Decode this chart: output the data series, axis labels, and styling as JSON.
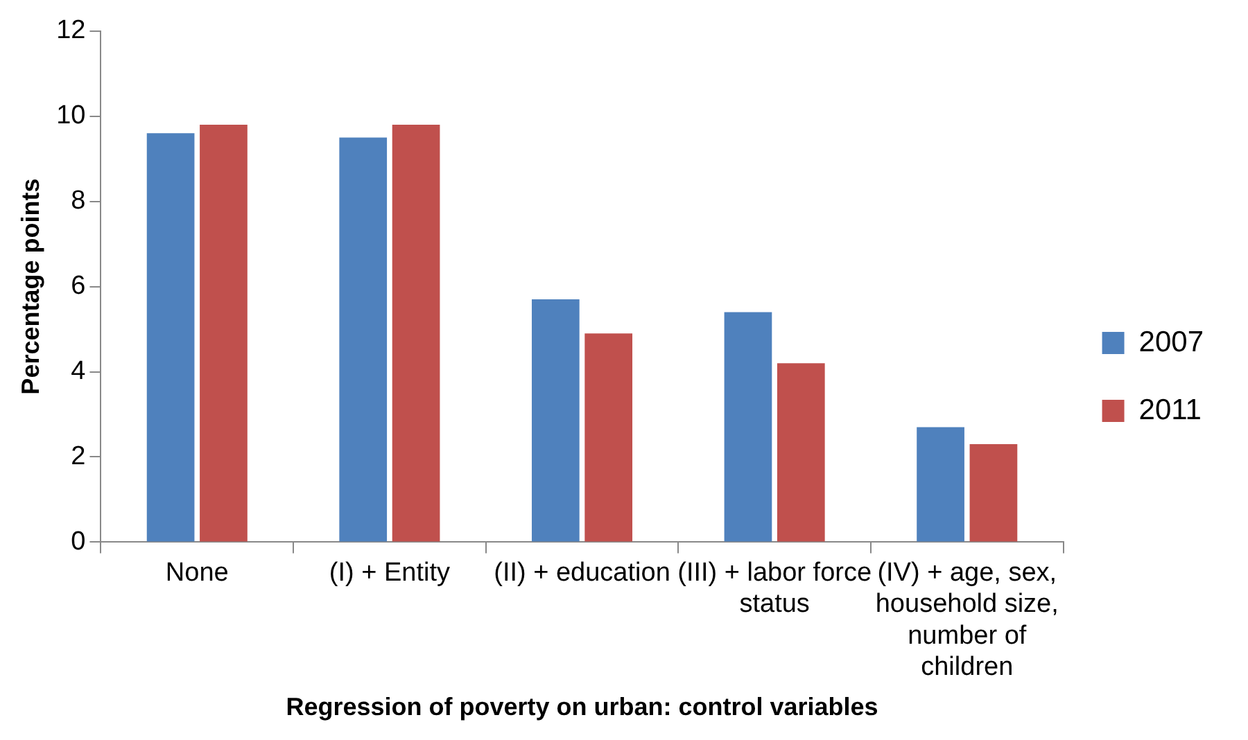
{
  "chart_data": {
    "type": "bar",
    "xlabel": "Regression of poverty on urban: control variables",
    "ylabel": "Percentage points",
    "categories": [
      "None",
      "(I) + Entity",
      "(II) + education",
      "(III) + labor force status",
      "(IV) + age, sex, household size, number of children"
    ],
    "series": [
      {
        "name": "2007",
        "color": "#4f81bd",
        "values": [
          9.6,
          9.5,
          5.7,
          5.4,
          2.7
        ]
      },
      {
        "name": "2011",
        "color": "#c0504d",
        "values": [
          9.8,
          9.8,
          4.9,
          4.2,
          2.3
        ]
      }
    ],
    "ylim": [
      0,
      12
    ],
    "yticks": [
      0,
      2,
      4,
      6,
      8,
      10,
      12
    ],
    "grid": false,
    "legend": "right"
  }
}
